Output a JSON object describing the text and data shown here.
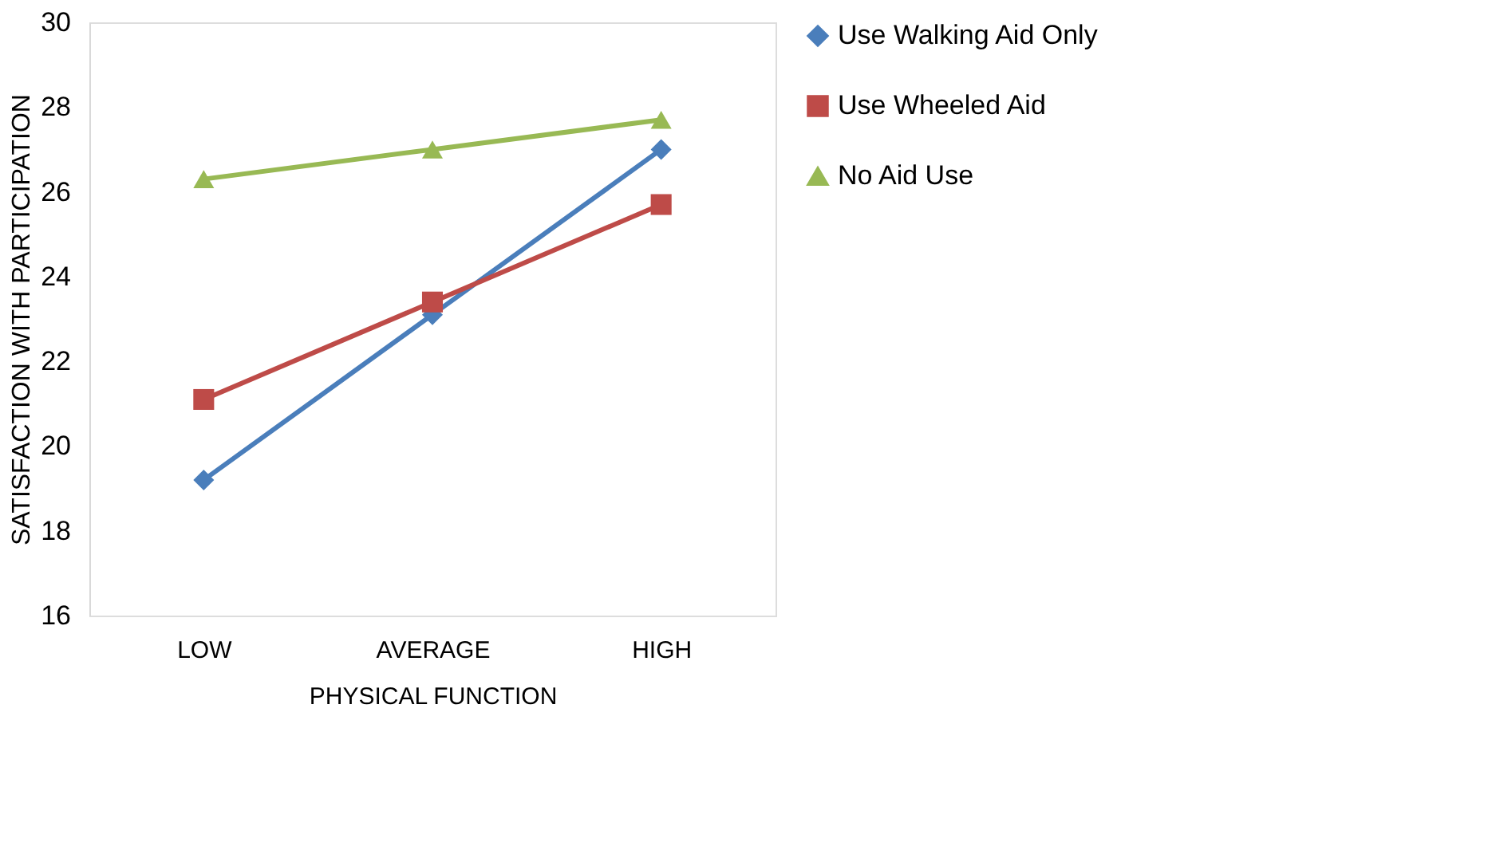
{
  "chart_data": {
    "type": "line",
    "xlabel": "PHYSICAL FUNCTION",
    "ylabel": "SATISFACTION WITH PARTICIPATION",
    "categories": [
      "LOW",
      "AVERAGE",
      "HIGH"
    ],
    "series": [
      {
        "name": "Use Walking Aid Only",
        "color": "#4a7ebb",
        "marker": "diamond",
        "values": [
          19.2,
          23.1,
          27.0
        ]
      },
      {
        "name": "Use Wheeled Aid",
        "color": "#be4b48",
        "marker": "square",
        "values": [
          21.1,
          23.4,
          25.7
        ]
      },
      {
        "name": "No Aid Use",
        "color": "#98b954",
        "marker": "triangle",
        "values": [
          26.3,
          27.0,
          27.7
        ]
      }
    ],
    "ylim": [
      16,
      30
    ],
    "yticks": [
      16,
      18,
      20,
      22,
      24,
      26,
      28,
      30
    ],
    "grid": false,
    "legend": "right",
    "line_style": "solid"
  }
}
